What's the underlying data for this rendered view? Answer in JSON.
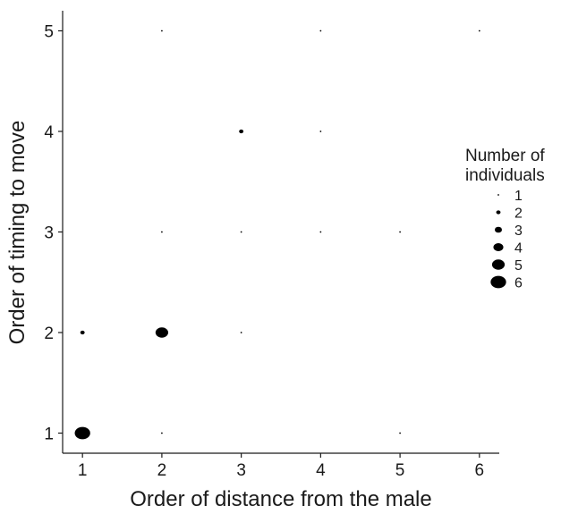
{
  "chart_data": {
    "type": "scatter",
    "title": "",
    "xlabel": "Order of distance from the male",
    "ylabel": "Order of timing to move",
    "x_ticks": [
      "1",
      "2",
      "3",
      "4",
      "5",
      "6"
    ],
    "y_ticks": [
      "1",
      "2",
      "3",
      "4",
      "5"
    ],
    "xlim": [
      0.75,
      6.25
    ],
    "ylim": [
      0.8,
      5.2
    ],
    "grid": false,
    "legend": {
      "title_line1": "Number of",
      "title_line2": "individuals",
      "placement": "right",
      "sizes": [
        1,
        2,
        3,
        4,
        5,
        6
      ],
      "labels": [
        "1",
        "2",
        "3",
        "4",
        "5",
        "6"
      ]
    },
    "points": [
      {
        "x": 1,
        "y": 1,
        "n": 6
      },
      {
        "x": 1,
        "y": 2,
        "n": 2
      },
      {
        "x": 2,
        "y": 1,
        "n": 1
      },
      {
        "x": 2,
        "y": 2,
        "n": 5
      },
      {
        "x": 2,
        "y": 3,
        "n": 1
      },
      {
        "x": 2,
        "y": 5,
        "n": 1
      },
      {
        "x": 3,
        "y": 2,
        "n": 1
      },
      {
        "x": 3,
        "y": 3,
        "n": 1
      },
      {
        "x": 3,
        "y": 4,
        "n": 2
      },
      {
        "x": 4,
        "y": 3,
        "n": 1
      },
      {
        "x": 4,
        "y": 4,
        "n": 1
      },
      {
        "x": 4,
        "y": 5,
        "n": 1
      },
      {
        "x": 5,
        "y": 1,
        "n": 1
      },
      {
        "x": 5,
        "y": 3,
        "n": 1
      },
      {
        "x": 6,
        "y": 5,
        "n": 1
      }
    ],
    "point_color": "#000000"
  }
}
